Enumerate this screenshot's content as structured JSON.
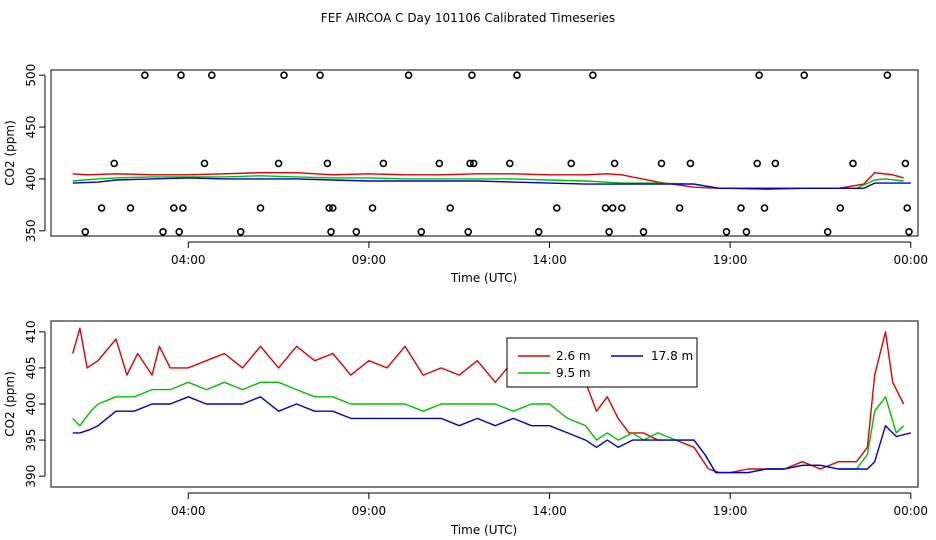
{
  "title": "FEF AIRCOA C  Day 101106  Calibrated Timeseries",
  "colors": {
    "s1": "#e00000",
    "s2": "#00c000",
    "s3": "#0000d0",
    "axis": "#000000",
    "background": "#ffffff"
  },
  "chart_data": [
    {
      "type": "line",
      "ylabel": "CO2 (ppm)",
      "xlabel": "Time (UTC)",
      "xlim": [
        0.2,
        24.2
      ],
      "ylim": [
        345,
        505
      ],
      "xticks": [
        4,
        9,
        14,
        19,
        24
      ],
      "xtick_labels": [
        "04:00",
        "09:00",
        "14:00",
        "19:00",
        "00:00"
      ],
      "yticks": [
        350,
        400,
        450,
        500
      ],
      "ytick_labels": [
        "350",
        "400",
        "450",
        "500"
      ],
      "series": [
        {
          "name": "2.6 m",
          "color": "#e00000",
          "x": [
            0.8,
            1.2,
            2,
            3,
            4,
            5,
            6,
            7,
            8,
            9,
            10,
            11,
            12,
            13,
            14,
            15,
            15.6,
            16,
            17,
            18,
            18.7,
            19,
            20,
            21,
            22,
            22.7,
            23,
            23.5,
            23.8
          ],
          "y": [
            405,
            404,
            405,
            404,
            404,
            405,
            406,
            406,
            404,
            405,
            404,
            404,
            405,
            405,
            404,
            404,
            405,
            404,
            397,
            392,
            391,
            391,
            390,
            391,
            391,
            395,
            406,
            404,
            401
          ]
        },
        {
          "name": "9.5 m",
          "color": "#00c000",
          "x": [
            0.8,
            1.5,
            2,
            3,
            4,
            5,
            6,
            7,
            8,
            9,
            10,
            11,
            12,
            13,
            14,
            15,
            16,
            17,
            18,
            18.7,
            19,
            20,
            21,
            22,
            22.5,
            23,
            23.3,
            23.8
          ],
          "y": [
            398,
            400,
            401,
            402,
            402,
            402,
            403,
            402,
            401,
            401,
            400,
            400,
            400,
            400,
            399,
            398,
            396,
            396,
            395,
            391,
            391,
            391,
            391,
            391,
            391,
            399,
            400,
            398
          ]
        },
        {
          "name": "17.8 m",
          "color": "#0000d0",
          "x": [
            0.8,
            1.5,
            2,
            3,
            4,
            5,
            6,
            7,
            8,
            9,
            10,
            11,
            12,
            13,
            14,
            15,
            16,
            17,
            18,
            18.7,
            19,
            20,
            21,
            22,
            22.7,
            23,
            23.3,
            24
          ],
          "y": [
            396,
            397,
            399,
            400,
            401,
            400,
            400,
            400,
            399,
            398,
            398,
            398,
            398,
            397,
            396,
            395,
            395,
            395,
            395,
            391,
            391,
            391,
            391,
            391,
            391,
            396,
            396,
            396
          ]
        }
      ],
      "points": {
        "x": [
          1.15,
          1.6,
          1.95,
          2.4,
          2.8,
          3.3,
          3.6,
          3.75,
          3.8,
          3.85,
          4.45,
          4.65,
          5.45,
          6.0,
          6.5,
          6.65,
          7.65,
          7.85,
          7.9,
          7.95,
          8.0,
          8.65,
          9.1,
          9.4,
          10.1,
          10.45,
          10.95,
          11.25,
          11.75,
          11.8,
          11.85,
          11.9,
          12.9,
          13.1,
          13.7,
          14.2,
          14.6,
          15.2,
          15.55,
          15.65,
          15.75,
          15.8,
          16.0,
          16.6,
          17.1,
          17.6,
          17.9,
          18.9,
          19.3,
          19.45,
          19.75,
          19.8,
          19.95,
          20.25,
          21.05,
          21.7,
          22.05,
          22.4,
          23.35,
          23.85,
          23.9,
          23.95
        ],
        "y": [
          349,
          372,
          415,
          372,
          500,
          349,
          372,
          349,
          500,
          372,
          415,
          500,
          349,
          372,
          415,
          500,
          500,
          415,
          372,
          349,
          372,
          349,
          372,
          415,
          500,
          349,
          415,
          372,
          349,
          415,
          500,
          415,
          415,
          500,
          349,
          372,
          415,
          500,
          372,
          349,
          372,
          415,
          372,
          349,
          415,
          372,
          415,
          349,
          372,
          349,
          415,
          500,
          372,
          415,
          500,
          349,
          372,
          415,
          500,
          415,
          372,
          349
        ]
      }
    },
    {
      "type": "line",
      "ylabel": "CO2 (ppm)",
      "xlabel": "Time (UTC)",
      "xlim": [
        0.2,
        24.2
      ],
      "ylim": [
        388.5,
        411.5
      ],
      "xticks": [
        4,
        9,
        14,
        19,
        24
      ],
      "xtick_labels": [
        "04:00",
        "09:00",
        "14:00",
        "19:00",
        "00:00"
      ],
      "yticks": [
        390,
        395,
        400,
        405,
        410
      ],
      "ytick_labels": [
        "390",
        "395",
        "400",
        "405",
        "410"
      ],
      "legend": {
        "position": "top-center",
        "entries": [
          {
            "label": "2.6 m",
            "color": "#e00000"
          },
          {
            "label": "17.8 m",
            "color": "#0000d0"
          },
          {
            "label": "9.5 m",
            "color": "#00c000"
          }
        ]
      },
      "series": [
        {
          "name": "2.6 m",
          "color": "#e00000",
          "x": [
            0.8,
            1.0,
            1.2,
            1.5,
            2.0,
            2.3,
            2.6,
            3.0,
            3.2,
            3.5,
            4.0,
            4.5,
            5.0,
            5.5,
            6.0,
            6.5,
            7.0,
            7.5,
            8.0,
            8.5,
            9.0,
            9.5,
            10.0,
            10.5,
            11.0,
            11.5,
            12.0,
            12.5,
            13.0,
            13.5,
            14.0,
            14.5,
            15.0,
            15.3,
            15.6,
            15.9,
            16.2,
            16.6,
            17.0,
            17.5,
            18.0,
            18.4,
            18.7,
            19.0,
            19.5,
            20.0,
            20.5,
            21.0,
            21.5,
            22.0,
            22.5,
            22.8,
            23.0,
            23.3,
            23.5,
            23.8
          ],
          "y": [
            407,
            410.5,
            405,
            406,
            409,
            404,
            407,
            404,
            408,
            405,
            405,
            406,
            407,
            405,
            408,
            405,
            408,
            406,
            407,
            404,
            406,
            405,
            408,
            404,
            405,
            404,
            406,
            403,
            406,
            403,
            404,
            403,
            403,
            399,
            401,
            398,
            396,
            396,
            395,
            395,
            394,
            391,
            390.5,
            390.5,
            391,
            391,
            391,
            392,
            391,
            392,
            392,
            394,
            404,
            410,
            403,
            400
          ]
        },
        {
          "name": "9.5 m",
          "color": "#00c000",
          "x": [
            0.8,
            1.0,
            1.3,
            1.5,
            2.0,
            2.5,
            3.0,
            3.5,
            4.0,
            4.5,
            5.0,
            5.5,
            6.0,
            6.5,
            7.0,
            7.5,
            8.0,
            8.5,
            9.0,
            9.5,
            10.0,
            10.5,
            11.0,
            11.5,
            12.0,
            12.5,
            13.0,
            13.5,
            14.0,
            14.5,
            15.0,
            15.3,
            15.6,
            15.9,
            16.3,
            16.6,
            17.0,
            17.5,
            18.0,
            18.3,
            18.6,
            19.0,
            19.5,
            20.0,
            20.5,
            21.0,
            21.5,
            22.0,
            22.5,
            22.8,
            23.0,
            23.3,
            23.6,
            23.8
          ],
          "y": [
            398,
            397,
            399,
            400,
            401,
            401,
            402,
            402,
            403,
            402,
            403,
            402,
            403,
            403,
            402,
            401,
            401,
            400,
            400,
            400,
            400,
            399,
            400,
            400,
            400,
            400,
            399,
            400,
            400,
            398,
            397,
            395,
            396,
            395,
            396,
            395,
            396,
            395,
            395,
            393,
            390.5,
            390.5,
            390.5,
            391,
            391,
            391.5,
            391.5,
            391,
            391,
            393,
            399,
            401,
            396,
            397
          ]
        },
        {
          "name": "17.8 m",
          "color": "#0000d0",
          "x": [
            0.8,
            1.0,
            1.3,
            1.5,
            2.0,
            2.5,
            3.0,
            3.5,
            4.0,
            4.5,
            5.0,
            5.5,
            6.0,
            6.5,
            7.0,
            7.5,
            8.0,
            8.5,
            9.0,
            9.5,
            10.0,
            10.5,
            11.0,
            11.5,
            12.0,
            12.5,
            13.0,
            13.5,
            14.0,
            14.5,
            15.0,
            15.3,
            15.6,
            15.9,
            16.3,
            16.6,
            17.0,
            17.5,
            18.0,
            18.3,
            18.6,
            19.0,
            19.5,
            20.0,
            20.5,
            21.0,
            21.5,
            22.0,
            22.5,
            22.8,
            23.0,
            23.3,
            23.6,
            24.0
          ],
          "y": [
            396,
            396,
            396.5,
            397,
            399,
            399,
            400,
            400,
            401,
            400,
            400,
            400,
            401,
            399,
            400,
            399,
            399,
            398,
            398,
            398,
            398,
            398,
            398,
            397,
            398,
            397,
            398,
            397,
            397,
            396,
            395,
            394,
            395,
            394,
            395,
            395,
            395,
            395,
            395,
            393,
            390.5,
            390.5,
            390.5,
            391,
            391,
            391.5,
            391.5,
            391,
            391,
            391,
            392,
            397,
            395.5,
            396
          ]
        }
      ]
    }
  ]
}
